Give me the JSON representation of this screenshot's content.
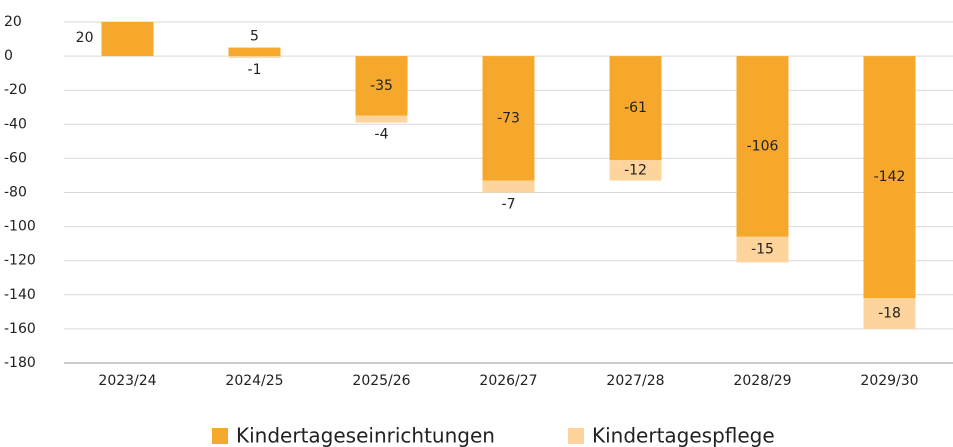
{
  "chart_data": {
    "type": "bar",
    "stacked": true,
    "categories": [
      "2023/24",
      "2024/25",
      "2025/26",
      "2026/27",
      "2027/28",
      "2028/29",
      "2029/30"
    ],
    "series": [
      {
        "name": "Kindertageseinrichtungen",
        "color": "#f6a82c",
        "values": [
          20,
          5,
          -35,
          -73,
          -61,
          -106,
          -142
        ]
      },
      {
        "name": "Kindertagespflege",
        "color": "#fdd49b",
        "values": [
          null,
          -1,
          -4,
          -7,
          -12,
          -15,
          -18
        ]
      }
    ],
    "ylim": [
      -180,
      20
    ],
    "yticks": [
      20,
      0,
      -20,
      -40,
      -60,
      -80,
      -100,
      -120,
      -140,
      -160,
      -180
    ],
    "grid": true,
    "legend": "bottom"
  }
}
